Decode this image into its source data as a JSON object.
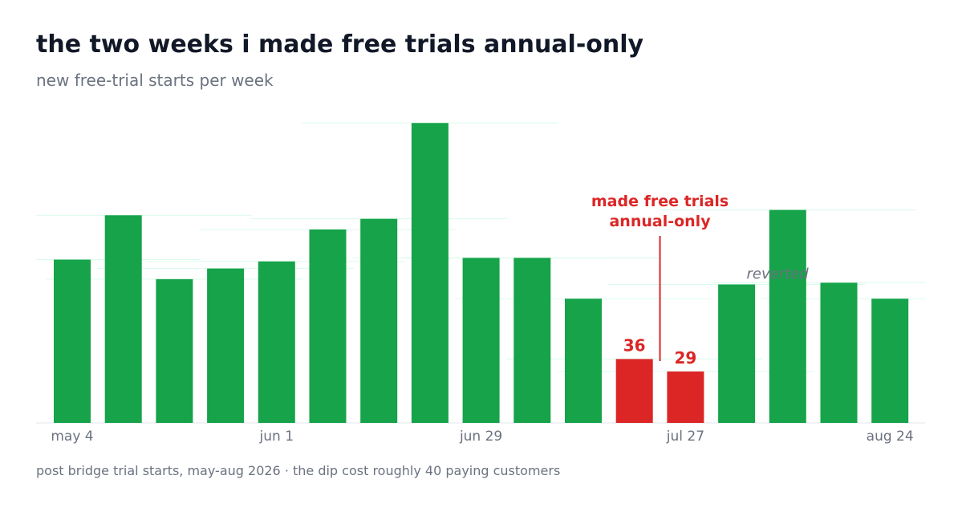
{
  "title": "the two weeks i made free trials annual-only",
  "subtitle": "new free-trial starts per week",
  "footer": "post bridge trial starts, may-aug 2026 · the dip cost roughly 40 paying customers",
  "colors": {
    "normal_bar": "#16a34a",
    "highlight_bar": "#dc2626",
    "annotation_muted": "#6b7280",
    "axis_text": "#6b7280",
    "title_text": "#111827"
  },
  "chart_data": {
    "type": "bar",
    "categories": [
      "may 4",
      "",
      "",
      "",
      "jun 1",
      "",
      "",
      "",
      "jun 29",
      "",
      "",
      "",
      "jul 27",
      "",
      "",
      "",
      "aug 24"
    ],
    "values": [
      92,
      117,
      81,
      87,
      91,
      109,
      115,
      169,
      93,
      93,
      70,
      36,
      29,
      78,
      120,
      79,
      70
    ],
    "highlighted_indices": [
      11,
      12
    ],
    "data_labels": [
      {
        "index": 11,
        "text": "36"
      },
      {
        "index": 12,
        "text": "29"
      }
    ],
    "annotations": {
      "change": {
        "text": [
          "made free trials",
          "annual-only"
        ],
        "at_index": 11.5
      },
      "revert": {
        "text": "reverted",
        "at_index": 13.8
      }
    },
    "ylim": [
      0,
      175
    ],
    "grid": false,
    "legend": "none"
  }
}
